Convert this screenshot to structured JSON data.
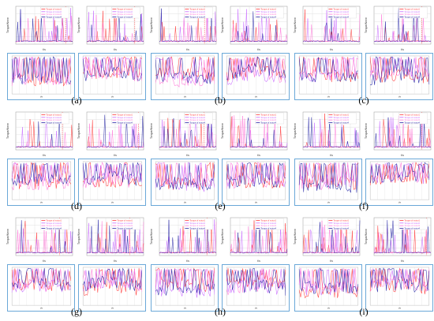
{
  "colors": {
    "motor1": "#ff3b3b",
    "motor2": "#c86bff",
    "motor3": "#ff7ad9",
    "motor4": "#2a2aa8",
    "grid": "#d9d9d9",
    "inset_border": "#6aa8d8"
  },
  "legend_entries": [
    "Torque of motor1",
    "Torque of motor2",
    "Torque of motor3",
    "Torque of motor4"
  ],
  "y_axis_label": "Torque/Nmm",
  "x_axis_label": "t/s",
  "panels": [
    {
      "label": "(a)"
    },
    {
      "label": "(b)"
    },
    {
      "label": "(c)"
    },
    {
      "label": "(d)"
    },
    {
      "label": "(e)"
    },
    {
      "label": "(f)"
    },
    {
      "label": "(g)"
    },
    {
      "label": "(h)"
    },
    {
      "label": "(i)"
    }
  ],
  "chart_data": {
    "type": "line",
    "title": "",
    "xlabel": "t/s",
    "ylabel": "Torque/Nmm",
    "series": [
      {
        "name": "Torque of motor1"
      },
      {
        "name": "Torque of motor2"
      },
      {
        "name": "Torque of motor3"
      },
      {
        "name": "Torque of motor4"
      }
    ],
    "grid": true,
    "legend_position": "top-right",
    "panel_count": 9,
    "charts_per_panel": 2
  }
}
